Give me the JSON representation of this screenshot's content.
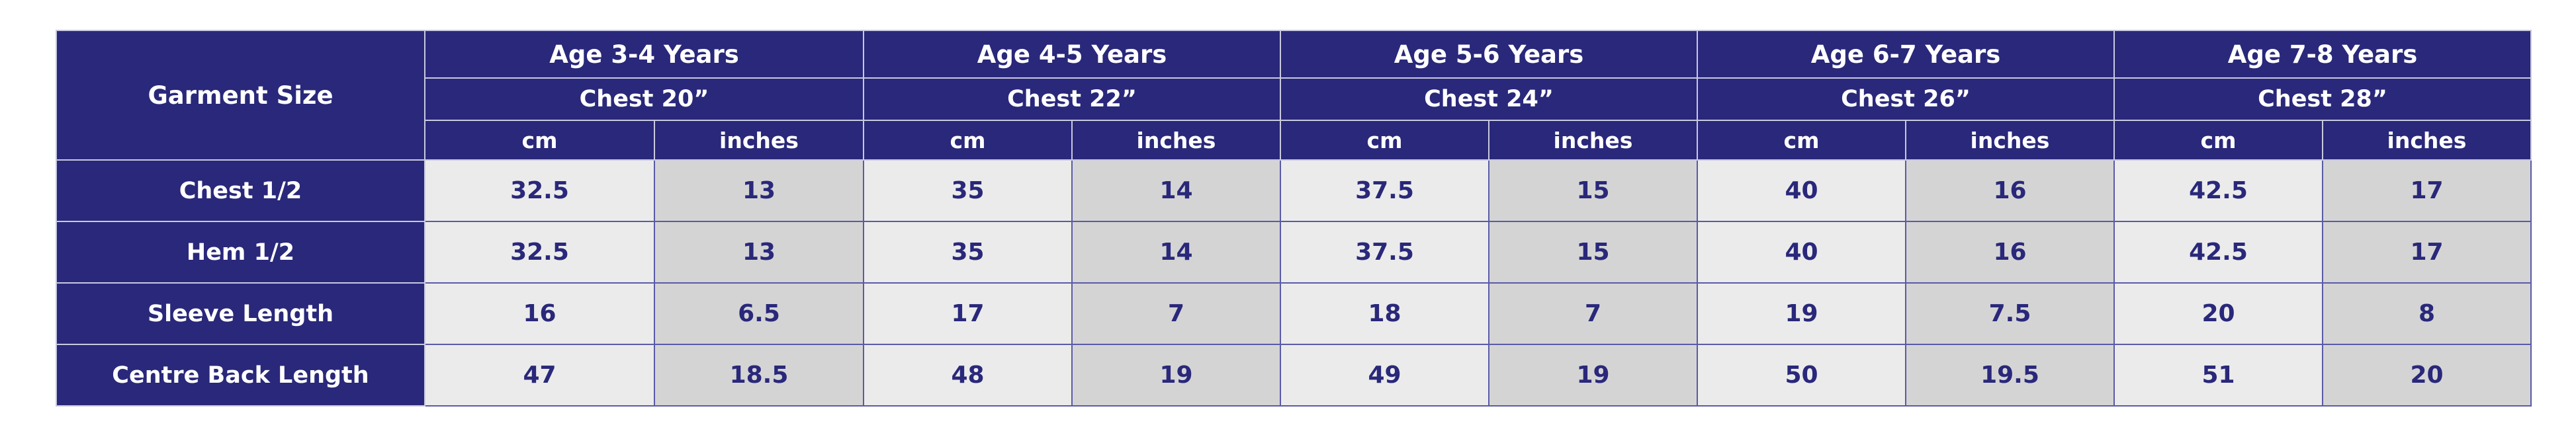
{
  "table": {
    "corner": "Garment Size",
    "groups": [
      {
        "age": "Age 3-4 Years",
        "chest": "Chest 20”",
        "units": [
          "cm",
          "inches"
        ]
      },
      {
        "age": "Age 4-5 Years",
        "chest": "Chest 22”",
        "units": [
          "cm",
          "inches"
        ]
      },
      {
        "age": "Age 5-6 Years",
        "chest": "Chest 24”",
        "units": [
          "cm",
          "inches"
        ]
      },
      {
        "age": "Age 6-7 Years",
        "chest": "Chest 26”",
        "units": [
          "cm",
          "inches"
        ]
      },
      {
        "age": "Age 7-8 Years",
        "chest": "Chest 28”",
        "units": [
          "cm",
          "inches"
        ]
      }
    ],
    "rows": [
      {
        "label": "Chest 1/2",
        "values": [
          32.5,
          13,
          35,
          14,
          37.5,
          15,
          40,
          16,
          42.5,
          17
        ]
      },
      {
        "label": "Hem 1/2",
        "values": [
          32.5,
          13,
          35,
          14,
          37.5,
          15,
          40,
          16,
          42.5,
          17
        ]
      },
      {
        "label": "Sleeve Length",
        "values": [
          16,
          6.5,
          17,
          7,
          18,
          7,
          19,
          7.5,
          20,
          8
        ]
      },
      {
        "label": "Centre Back Length",
        "values": [
          47,
          18.5,
          48,
          19,
          49,
          19,
          50,
          19.5,
          51,
          20
        ]
      }
    ]
  }
}
